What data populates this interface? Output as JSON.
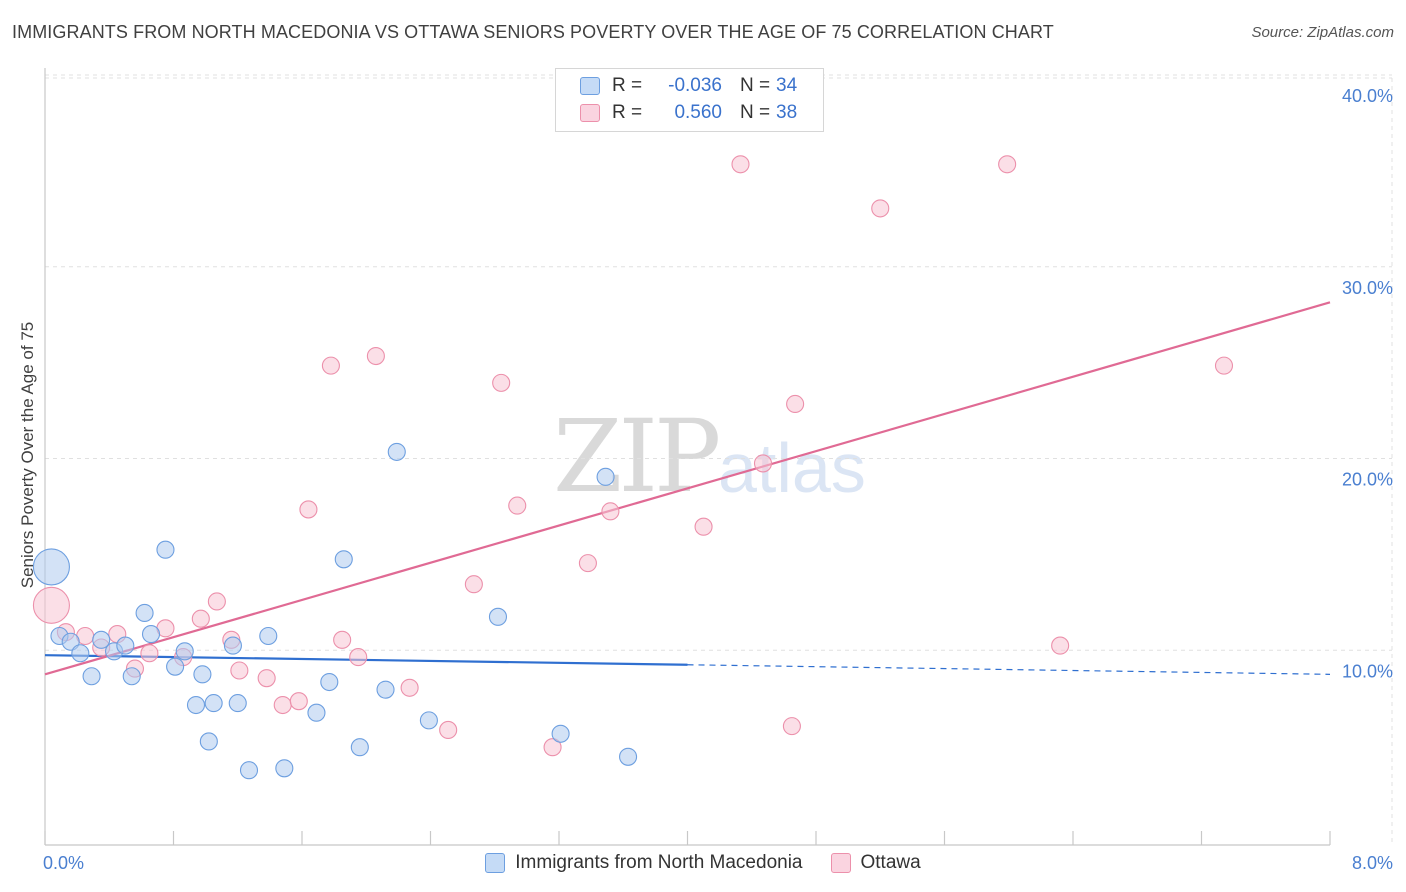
{
  "title": "IMMIGRANTS FROM NORTH MACEDONIA VS OTTAWA SENIORS POVERTY OVER THE AGE OF 75 CORRELATION CHART",
  "source": "Source: ZipAtlas.com",
  "watermark": {
    "zip": "ZIP",
    "atlas": "atlas"
  },
  "colors": {
    "blue_fill": "#aecbef",
    "blue_stroke": "#6d9fe0",
    "blue_line": "#2f6fd0",
    "pink_fill": "#f7c4d3",
    "pink_stroke": "#ec90ab",
    "pink_line": "#e06a94",
    "tick_text": "#4a7fd0"
  },
  "legend": {
    "rows": [
      {
        "r_label": "R =",
        "r_value": "-0.036",
        "n_label": "N =",
        "n_value": "34"
      },
      {
        "r_label": "R =",
        "r_value": "0.560",
        "n_label": "N =",
        "n_value": "38"
      }
    ]
  },
  "chart_data": {
    "type": "scatter",
    "xlabel": "",
    "ylabel": "Seniors Poverty Over the Age of 75",
    "xlim": [
      0,
      8
    ],
    "ylim": [
      0,
      40
    ],
    "x_ticks": [
      0,
      8
    ],
    "x_tick_labels": [
      "0.0%",
      "8.0%"
    ],
    "y_ticks": [
      10,
      20,
      30,
      40
    ],
    "y_tick_labels": [
      "10.0%",
      "20.0%",
      "30.0%",
      "40.0%"
    ],
    "grid": true,
    "legend_position": "top-center",
    "series": [
      {
        "name": "Immigrants from North Macedonia",
        "color": "blue",
        "trend": {
          "x": [
            0,
            4.0
          ],
          "y": [
            9.9,
            9.4
          ],
          "dashed_to": 8.0,
          "dashed_y": 8.9
        },
        "points": [
          {
            "x": 0.04,
            "y": 14.5,
            "size": "large"
          },
          {
            "x": 0.09,
            "y": 10.9
          },
          {
            "x": 0.16,
            "y": 10.6
          },
          {
            "x": 0.22,
            "y": 10.0
          },
          {
            "x": 0.29,
            "y": 8.8
          },
          {
            "x": 0.35,
            "y": 10.7
          },
          {
            "x": 0.43,
            "y": 10.1
          },
          {
            "x": 0.5,
            "y": 10.4
          },
          {
            "x": 0.54,
            "y": 8.8
          },
          {
            "x": 0.62,
            "y": 12.1
          },
          {
            "x": 0.66,
            "y": 11.0
          },
          {
            "x": 0.75,
            "y": 15.4
          },
          {
            "x": 0.81,
            "y": 9.3
          },
          {
            "x": 0.87,
            "y": 10.1
          },
          {
            "x": 0.94,
            "y": 7.3
          },
          {
            "x": 1.02,
            "y": 5.4
          },
          {
            "x": 1.05,
            "y": 7.4
          },
          {
            "x": 1.17,
            "y": 10.4
          },
          {
            "x": 1.2,
            "y": 7.4
          },
          {
            "x": 1.27,
            "y": 3.9
          },
          {
            "x": 1.39,
            "y": 10.9
          },
          {
            "x": 1.49,
            "y": 4.0
          },
          {
            "x": 1.69,
            "y": 6.9
          },
          {
            "x": 1.77,
            "y": 8.5
          },
          {
            "x": 1.86,
            "y": 14.9
          },
          {
            "x": 1.96,
            "y": 5.1
          },
          {
            "x": 2.12,
            "y": 8.1
          },
          {
            "x": 2.19,
            "y": 20.5
          },
          {
            "x": 2.39,
            "y": 6.5
          },
          {
            "x": 2.82,
            "y": 11.9
          },
          {
            "x": 3.21,
            "y": 5.8
          },
          {
            "x": 3.49,
            "y": 19.2
          },
          {
            "x": 3.63,
            "y": 4.6
          },
          {
            "x": 0.98,
            "y": 8.9
          }
        ]
      },
      {
        "name": "Ottawa",
        "color": "pink",
        "trend": {
          "x": [
            0,
            8.0
          ],
          "y": [
            8.9,
            28.3
          ]
        },
        "points": [
          {
            "x": 0.04,
            "y": 12.5,
            "size": "large"
          },
          {
            "x": 0.13,
            "y": 11.1
          },
          {
            "x": 0.25,
            "y": 10.9
          },
          {
            "x": 0.35,
            "y": 10.3
          },
          {
            "x": 0.45,
            "y": 11.0
          },
          {
            "x": 0.56,
            "y": 9.2
          },
          {
            "x": 0.65,
            "y": 10.0
          },
          {
            "x": 0.75,
            "y": 11.3
          },
          {
            "x": 0.86,
            "y": 9.8
          },
          {
            "x": 0.97,
            "y": 11.8
          },
          {
            "x": 1.07,
            "y": 12.7
          },
          {
            "x": 1.16,
            "y": 10.7
          },
          {
            "x": 1.21,
            "y": 9.1
          },
          {
            "x": 1.38,
            "y": 8.7
          },
          {
            "x": 1.48,
            "y": 7.3
          },
          {
            "x": 1.58,
            "y": 7.5
          },
          {
            "x": 1.64,
            "y": 17.5
          },
          {
            "x": 1.78,
            "y": 25.0
          },
          {
            "x": 1.85,
            "y": 10.7
          },
          {
            "x": 1.95,
            "y": 9.8
          },
          {
            "x": 2.06,
            "y": 25.5
          },
          {
            "x": 2.27,
            "y": 8.2
          },
          {
            "x": 2.51,
            "y": 6.0
          },
          {
            "x": 2.67,
            "y": 13.6
          },
          {
            "x": 2.84,
            "y": 24.1
          },
          {
            "x": 2.94,
            "y": 17.7
          },
          {
            "x": 3.16,
            "y": 5.1
          },
          {
            "x": 3.38,
            "y": 14.7
          },
          {
            "x": 3.52,
            "y": 17.4
          },
          {
            "x": 4.1,
            "y": 16.6
          },
          {
            "x": 4.33,
            "y": 35.5
          },
          {
            "x": 4.47,
            "y": 19.9
          },
          {
            "x": 4.65,
            "y": 6.2
          },
          {
            "x": 4.67,
            "y": 23.0
          },
          {
            "x": 5.2,
            "y": 33.2
          },
          {
            "x": 5.99,
            "y": 35.5
          },
          {
            "x": 6.32,
            "y": 10.4
          },
          {
            "x": 7.34,
            "y": 25.0
          }
        ]
      }
    ]
  }
}
